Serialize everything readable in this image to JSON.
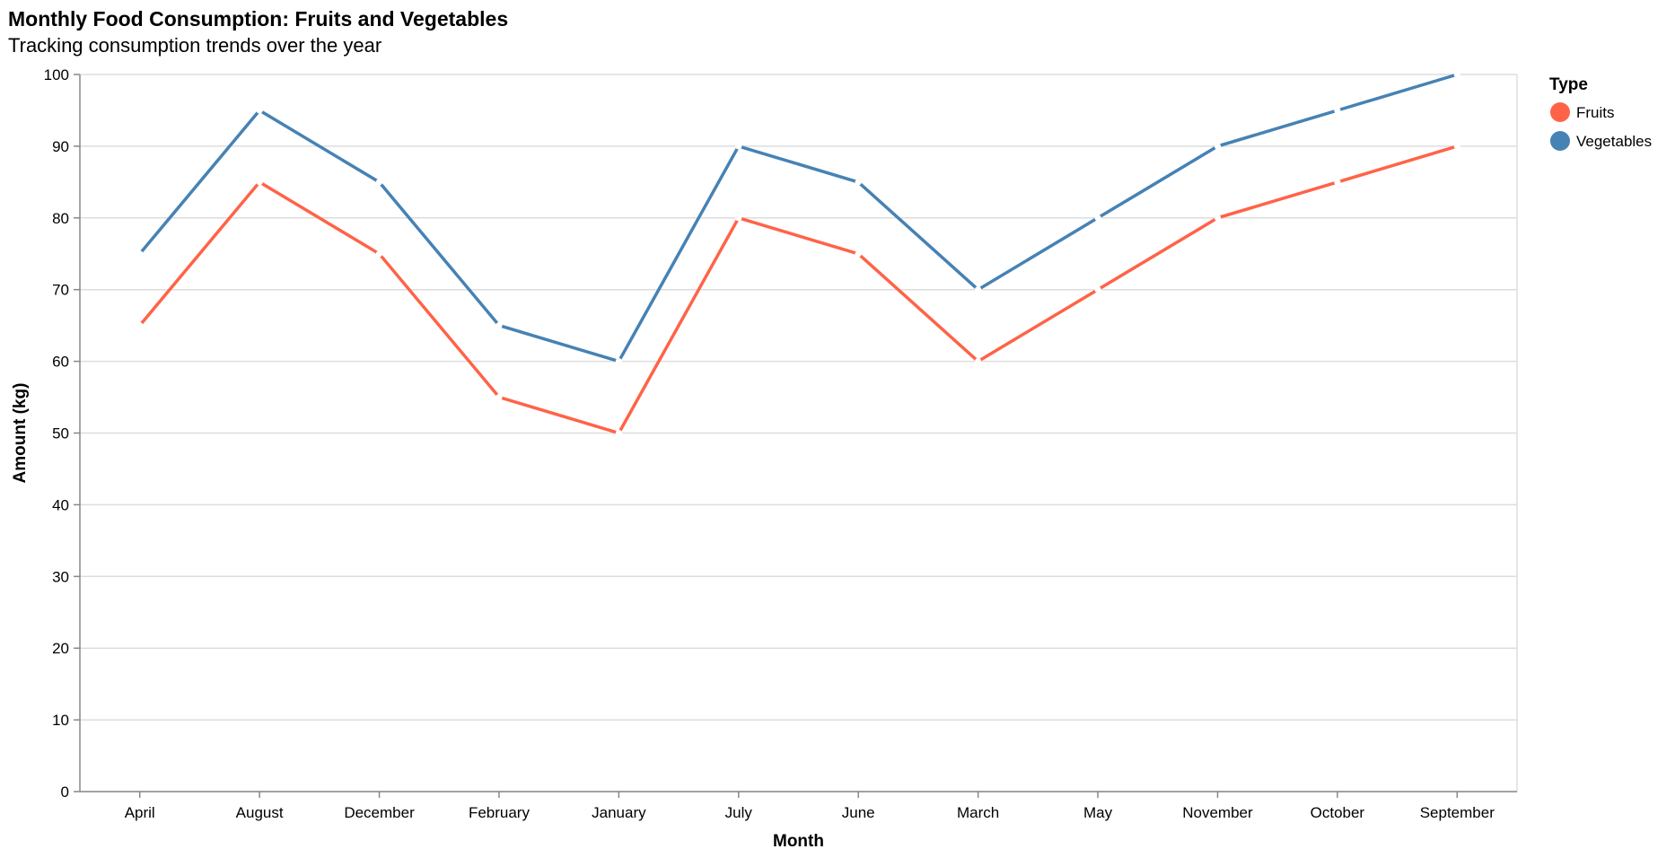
{
  "chart_data": {
    "type": "line",
    "title": "Monthly Food Consumption: Fruits and Vegetables",
    "subtitle": "Tracking consumption trends over the year",
    "xlabel": "Month",
    "ylabel": "Amount (kg)",
    "categories": [
      "April",
      "August",
      "December",
      "February",
      "January",
      "July",
      "June",
      "March",
      "May",
      "November",
      "October",
      "September"
    ],
    "ylim": [
      0,
      100
    ],
    "yticks": [
      0,
      10,
      20,
      30,
      40,
      50,
      60,
      70,
      80,
      90,
      100
    ],
    "grid": true,
    "legend": {
      "title": "Type",
      "position": "top-right"
    },
    "series": [
      {
        "name": "Fruits",
        "color": "#ff6347",
        "values": [
          65,
          85,
          75,
          55,
          50,
          80,
          75,
          60,
          70,
          80,
          85,
          90
        ]
      },
      {
        "name": "Vegetables",
        "color": "#4682b4",
        "values": [
          75,
          95,
          85,
          65,
          60,
          90,
          85,
          70,
          80,
          90,
          95,
          100
        ]
      }
    ]
  }
}
